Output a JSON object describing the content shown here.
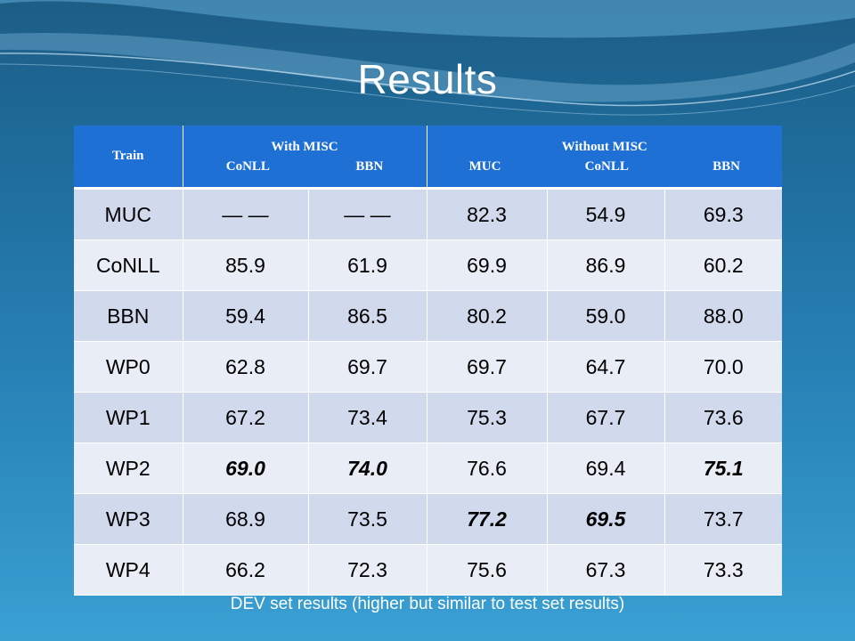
{
  "slide": {
    "title": "Results",
    "caption": "DEV set results (higher but similar to test set results)"
  },
  "table": {
    "header": {
      "train": "Train",
      "with_misc": {
        "label": "With MISC",
        "sub": [
          "CoNLL",
          "BBN"
        ]
      },
      "without_misc": {
        "label": "Without MISC",
        "sub": [
          "MUC",
          "CoNLL",
          "BBN"
        ]
      }
    },
    "rows": [
      {
        "label": "MUC",
        "cells": [
          "— —",
          "— —",
          "82.3",
          "54.9",
          "69.3"
        ],
        "bold": [
          false,
          false,
          false,
          false,
          false
        ]
      },
      {
        "label": "CoNLL",
        "cells": [
          "85.9",
          "61.9",
          "69.9",
          "86.9",
          "60.2"
        ],
        "bold": [
          false,
          false,
          false,
          false,
          false
        ]
      },
      {
        "label": "BBN",
        "cells": [
          "59.4",
          "86.5",
          "80.2",
          "59.0",
          "88.0"
        ],
        "bold": [
          false,
          false,
          false,
          false,
          false
        ]
      },
      {
        "label": "WP0",
        "cells": [
          "62.8",
          "69.7",
          "69.7",
          "64.7",
          "70.0"
        ],
        "bold": [
          false,
          false,
          false,
          false,
          false
        ]
      },
      {
        "label": "WP1",
        "cells": [
          "67.2",
          "73.4",
          "75.3",
          "67.7",
          "73.6"
        ],
        "bold": [
          false,
          false,
          false,
          false,
          false
        ]
      },
      {
        "label": "WP2",
        "cells": [
          "69.0",
          "74.0",
          "76.6",
          "69.4",
          "75.1"
        ],
        "bold": [
          true,
          true,
          false,
          false,
          true
        ]
      },
      {
        "label": "WP3",
        "cells": [
          "68.9",
          "73.5",
          "77.2",
          "69.5",
          "73.7"
        ],
        "bold": [
          false,
          false,
          true,
          true,
          false
        ]
      },
      {
        "label": "WP4",
        "cells": [
          "66.2",
          "72.3",
          "75.6",
          "67.3",
          "73.3"
        ],
        "bold": [
          false,
          false,
          false,
          false,
          false
        ]
      }
    ]
  }
}
